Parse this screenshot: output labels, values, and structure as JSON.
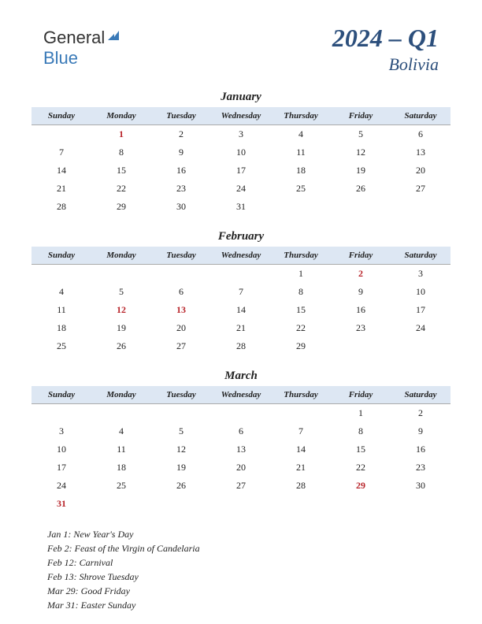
{
  "logo": {
    "text1": "General",
    "text2": "Blue"
  },
  "header": {
    "quarter": "2024 – Q1",
    "country": "Bolivia"
  },
  "daysOfWeek": [
    "Sunday",
    "Monday",
    "Tuesday",
    "Wednesday",
    "Thursday",
    "Friday",
    "Saturday"
  ],
  "months": [
    {
      "name": "January",
      "weeks": [
        [
          "",
          "1",
          "2",
          "3",
          "4",
          "5",
          "6"
        ],
        [
          "7",
          "8",
          "9",
          "10",
          "11",
          "12",
          "13"
        ],
        [
          "14",
          "15",
          "16",
          "17",
          "18",
          "19",
          "20"
        ],
        [
          "21",
          "22",
          "23",
          "24",
          "25",
          "26",
          "27"
        ],
        [
          "28",
          "29",
          "30",
          "31",
          "",
          "",
          ""
        ]
      ],
      "holidays": [
        "1"
      ]
    },
    {
      "name": "February",
      "weeks": [
        [
          "",
          "",
          "",
          "",
          "1",
          "2",
          "3"
        ],
        [
          "4",
          "5",
          "6",
          "7",
          "8",
          "9",
          "10"
        ],
        [
          "11",
          "12",
          "13",
          "14",
          "15",
          "16",
          "17"
        ],
        [
          "18",
          "19",
          "20",
          "21",
          "22",
          "23",
          "24"
        ],
        [
          "25",
          "26",
          "27",
          "28",
          "29",
          "",
          ""
        ]
      ],
      "holidays": [
        "2",
        "12",
        "13"
      ]
    },
    {
      "name": "March",
      "weeks": [
        [
          "",
          "",
          "",
          "",
          "",
          "1",
          "2"
        ],
        [
          "3",
          "4",
          "5",
          "6",
          "7",
          "8",
          "9"
        ],
        [
          "10",
          "11",
          "12",
          "13",
          "14",
          "15",
          "16"
        ],
        [
          "17",
          "18",
          "19",
          "20",
          "21",
          "22",
          "23"
        ],
        [
          "24",
          "25",
          "26",
          "27",
          "28",
          "29",
          "30"
        ],
        [
          "31",
          "",
          "",
          "",
          "",
          "",
          ""
        ]
      ],
      "holidays": [
        "29",
        "31"
      ]
    }
  ],
  "holidayList": [
    "Jan 1: New Year's Day",
    "Feb 2: Feast of the Virgin of Candelaria",
    "Feb 12: Carnival",
    "Feb 13: Shrove Tuesday",
    "Mar 29: Good Friday",
    "Mar 31: Easter Sunday"
  ],
  "colors": {
    "headerBg": "#dde7f3",
    "titleColor": "#2c4f7c",
    "holidayColor": "#b8242a",
    "text": "#222222"
  }
}
